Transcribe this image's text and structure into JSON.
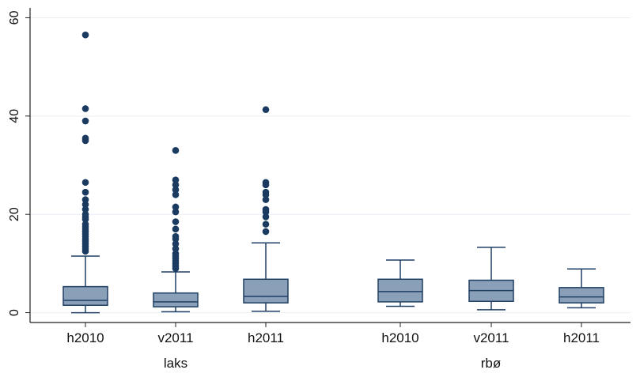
{
  "chart_data": {
    "type": "box",
    "ylim": [
      -2,
      62
    ],
    "yticks": [
      0,
      20,
      40,
      60
    ],
    "grid": true,
    "colors": {
      "box_fill": "#8aa0b8",
      "line": "#1f3f64",
      "outlier": "#1a3a60",
      "grid": "#e8eef3"
    },
    "groups": [
      {
        "label": "laks",
        "categories": [
          "h2010",
          "v2011",
          "h2011"
        ]
      },
      {
        "label": "rbø",
        "categories": [
          "h2010",
          "v2011",
          "h2011"
        ]
      }
    ],
    "boxes": [
      {
        "group": "laks",
        "category": "h2010",
        "whisker_low": 0,
        "q1": 1.5,
        "median": 2.5,
        "q3": 5.3,
        "whisker_high": 11.5,
        "outliers": [
          12.5,
          13,
          13.5,
          14,
          14.5,
          15,
          15.5,
          16,
          16.5,
          17,
          17.5,
          18,
          19,
          19.5,
          20,
          21,
          22,
          23,
          24.5,
          26.5,
          35,
          35.5,
          39,
          41.5,
          56.5
        ]
      },
      {
        "group": "laks",
        "category": "v2011",
        "whisker_low": 0.2,
        "q1": 1.2,
        "median": 2.2,
        "q3": 4.0,
        "whisker_high": 8.3,
        "outliers": [
          9,
          9.5,
          10,
          10.5,
          11,
          11.5,
          12,
          13,
          14,
          15,
          15.5,
          17,
          18.5,
          20.5,
          21.5,
          24,
          25,
          26,
          27,
          33
        ]
      },
      {
        "group": "laks",
        "category": "h2011",
        "whisker_low": 0.3,
        "q1": 2.0,
        "median": 3.3,
        "q3": 6.8,
        "whisker_high": 14.2,
        "outliers": [
          16.5,
          18,
          19.5,
          20.5,
          21,
          23,
          24,
          24.5,
          26,
          26.5,
          41.3
        ]
      },
      {
        "group": "rbø",
        "category": "h2010",
        "whisker_low": 1.3,
        "q1": 2.2,
        "median": 4.3,
        "q3": 6.8,
        "whisker_high": 10.7,
        "outliers": []
      },
      {
        "group": "rbø",
        "category": "v2011",
        "whisker_low": 0.6,
        "q1": 2.3,
        "median": 4.5,
        "q3": 6.6,
        "whisker_high": 13.3,
        "outliers": []
      },
      {
        "group": "rbø",
        "category": "h2011",
        "whisker_low": 1.0,
        "q1": 2.0,
        "median": 3.2,
        "q3": 5.1,
        "whisker_high": 8.9,
        "outliers": []
      }
    ]
  }
}
